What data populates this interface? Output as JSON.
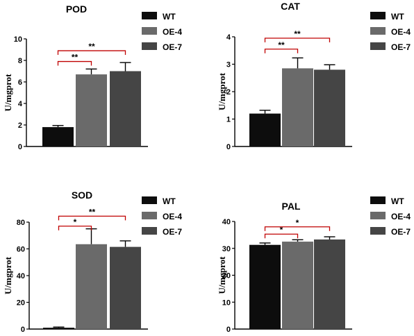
{
  "chart_data": [
    {
      "type": "bar",
      "title": "POD",
      "ylabel": "U/mgprot",
      "ylim": [
        0,
        10
      ],
      "yticks": [
        "0",
        "2",
        "4",
        "6",
        "8",
        "10"
      ],
      "categories": [
        "WT",
        "OE-4",
        "OE-7"
      ],
      "values": [
        1.8,
        6.7,
        7.0
      ],
      "errors": [
        0.15,
        0.5,
        0.8
      ],
      "colors": [
        "#0d0d0d",
        "#6a6a6a",
        "#454545"
      ],
      "legend": [
        "WT",
        "OE-4",
        "OE-7"
      ],
      "significance": [
        {
          "from": 0,
          "to": 1,
          "y": 7.9,
          "label": "**"
        },
        {
          "from": 0,
          "to": 2,
          "y": 8.9,
          "label": "**"
        }
      ]
    },
    {
      "type": "bar",
      "title": "CAT",
      "ylabel": "U/mgprot",
      "ylim": [
        0,
        4
      ],
      "yticks": [
        "0",
        "1",
        "2",
        "3",
        "4"
      ],
      "categories": [
        "WT",
        "OE-4",
        "OE-7"
      ],
      "values": [
        1.2,
        2.85,
        2.8
      ],
      "errors": [
        0.12,
        0.38,
        0.18
      ],
      "colors": [
        "#0d0d0d",
        "#6a6a6a",
        "#454545"
      ],
      "legend": [
        "WT",
        "OE-4",
        "OE-7"
      ],
      "significance": [
        {
          "from": 0,
          "to": 1,
          "y": 3.55,
          "label": "**"
        },
        {
          "from": 0,
          "to": 2,
          "y": 3.95,
          "label": "**"
        }
      ]
    },
    {
      "type": "bar",
      "title": "SOD",
      "ylabel": "U/mgprot",
      "ylim": [
        0,
        80
      ],
      "yticks": [
        "0",
        "20",
        "40",
        "60",
        "80"
      ],
      "categories": [
        "WT",
        "OE-4",
        "OE-7"
      ],
      "values": [
        1.0,
        63.5,
        61.5
      ],
      "errors": [
        0.5,
        11.5,
        4.5
      ],
      "colors": [
        "#0d0d0d",
        "#6a6a6a",
        "#454545"
      ],
      "legend": [
        "WT",
        "OE-4",
        "OE-7"
      ],
      "significance": [
        {
          "from": 0,
          "to": 1,
          "y": 77,
          "label": "*"
        },
        {
          "from": 0,
          "to": 2,
          "y": 84.5,
          "label": "**"
        }
      ]
    },
    {
      "type": "bar",
      "title": "PAL",
      "ylabel": "U/mgprot",
      "ylim": [
        0,
        40
      ],
      "yticks": [
        "0",
        "10",
        "20",
        "30",
        "40"
      ],
      "categories": [
        "WT",
        "OE-4",
        "OE-7"
      ],
      "values": [
        31.3,
        32.5,
        33.3
      ],
      "errors": [
        0.7,
        0.7,
        1.0
      ],
      "colors": [
        "#0d0d0d",
        "#6a6a6a",
        "#454545"
      ],
      "legend": [
        "WT",
        "OE-4",
        "OE-7"
      ],
      "significance": [
        {
          "from": 0,
          "to": 1,
          "y": 35.3,
          "label": "*"
        },
        {
          "from": 0,
          "to": 2,
          "y": 38.0,
          "label": "*"
        }
      ]
    }
  ]
}
